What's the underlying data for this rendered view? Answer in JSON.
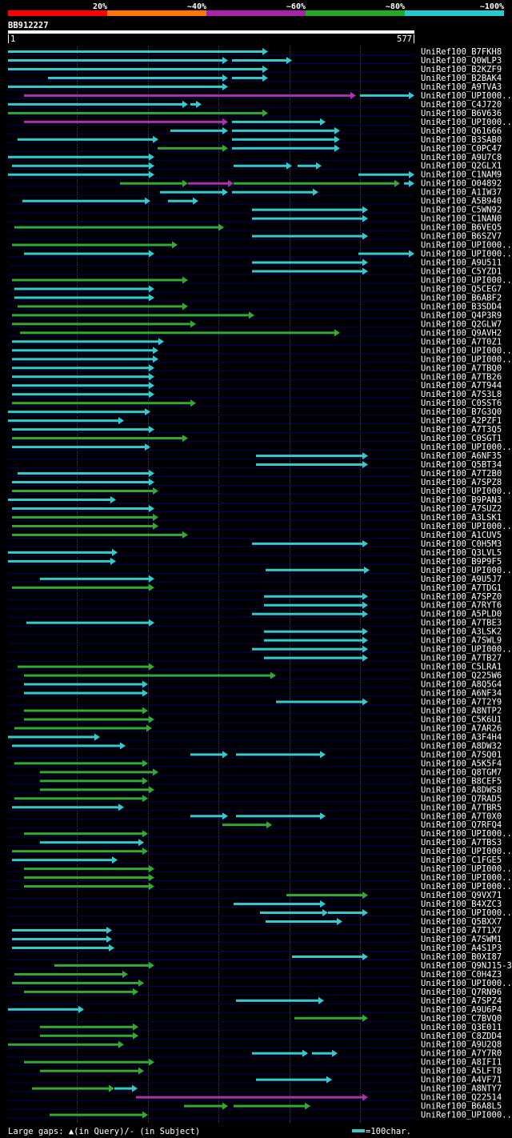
{
  "header": {
    "scale_labels": [
      "20%",
      "~40%",
      "~60%",
      "~80%",
      "~100%"
    ],
    "scale_colors": [
      "#ff0000",
      "#ff7700",
      "#aa22aa",
      "#22aa22",
      "#22cccc"
    ],
    "query_id": "BB912227",
    "ruler_start": "1",
    "ruler_end": "577"
  },
  "colors": {
    "cyan": "#33cccc",
    "green": "#33aa33",
    "magenta": "#aa33aa",
    "grid": "#444444",
    "rowline": "#000066"
  },
  "hits": [
    {
      "id": "UniRef100_B7FKH8",
      "segs": [
        [
          10,
          335,
          "c"
        ]
      ]
    },
    {
      "id": "UniRef100_Q0WLP3",
      "segs": [
        [
          10,
          285,
          "c"
        ],
        [
          290,
          365,
          "c"
        ]
      ]
    },
    {
      "id": "UniRef100_B2KZF9",
      "segs": [
        [
          10,
          335,
          "c"
        ]
      ]
    },
    {
      "id": "UniRef100_B2BAK4",
      "segs": [
        [
          60,
          285,
          "c"
        ],
        [
          290,
          335,
          "c"
        ]
      ]
    },
    {
      "id": "UniRef100_A9TVA3",
      "segs": [
        [
          10,
          285,
          "c"
        ]
      ]
    },
    {
      "id": "UniRef100_UPI000..",
      "segs": [
        [
          30,
          445,
          "m"
        ],
        [
          450,
          518,
          "c"
        ]
      ]
    },
    {
      "id": "UniRef100_C4J720",
      "segs": [
        [
          10,
          235,
          "c"
        ],
        [
          238,
          252,
          "c"
        ]
      ]
    },
    {
      "id": "UniRef100_B6V636",
      "segs": [
        [
          10,
          335,
          "g"
        ]
      ]
    },
    {
      "id": "UniRef100_UPI000..",
      "segs": [
        [
          30,
          285,
          "m"
        ],
        [
          290,
          407,
          "c"
        ]
      ]
    },
    {
      "id": "UniRef100_Q61666",
      "segs": [
        [
          213,
          285,
          "c"
        ],
        [
          290,
          425,
          "c"
        ]
      ]
    },
    {
      "id": "UniRef100_B3SAB0",
      "segs": [
        [
          22,
          198,
          "c"
        ],
        [
          290,
          425,
          "c"
        ]
      ]
    },
    {
      "id": "UniRef100_C0PC47",
      "segs": [
        [
          197,
          285,
          "g"
        ],
        [
          290,
          425,
          "c"
        ]
      ]
    },
    {
      "id": "UniRef100_A9U7C8",
      "segs": [
        [
          10,
          193,
          "c"
        ]
      ]
    },
    {
      "id": "UniRef100_Q2GLX1",
      "segs": [
        [
          15,
          193,
          "c"
        ],
        [
          292,
          365,
          "c"
        ],
        [
          372,
          402,
          "c"
        ]
      ]
    },
    {
      "id": "UniRef100_C1NAM9",
      "segs": [
        [
          10,
          193,
          "c"
        ],
        [
          448,
          518,
          "c"
        ]
      ]
    },
    {
      "id": "UniRef100_O04892",
      "segs": [
        [
          150,
          235,
          "g"
        ],
        [
          235,
          292,
          "m"
        ],
        [
          292,
          500,
          "g"
        ],
        [
          505,
          518,
          "c"
        ]
      ]
    },
    {
      "id": "UniRef100_A1IW37",
      "segs": [
        [
          200,
          285,
          "c"
        ],
        [
          290,
          398,
          "c"
        ]
      ]
    },
    {
      "id": "UniRef100_A5B940",
      "segs": [
        [
          28,
          188,
          "c"
        ],
        [
          210,
          248,
          "c"
        ]
      ]
    },
    {
      "id": "UniRef100_C5WN92",
      "segs": [
        [
          315,
          460,
          "c"
        ]
      ]
    },
    {
      "id": "UniRef100_C1NAN0",
      "segs": [
        [
          315,
          460,
          "c"
        ]
      ]
    },
    {
      "id": "UniRef100_B6VEQ5",
      "segs": [
        [
          18,
          280,
          "g"
        ]
      ]
    },
    {
      "id": "UniRef100_B6SZV7",
      "segs": [
        [
          315,
          460,
          "c"
        ]
      ]
    },
    {
      "id": "UniRef100_UPI000..",
      "segs": [
        [
          15,
          222,
          "g"
        ]
      ]
    },
    {
      "id": "UniRef100_UPI000..",
      "segs": [
        [
          30,
          193,
          "c"
        ],
        [
          448,
          518,
          "c"
        ]
      ]
    },
    {
      "id": "UniRef100_A9U511",
      "segs": [
        [
          315,
          460,
          "c"
        ]
      ]
    },
    {
      "id": "UniRef100_C5YZD1",
      "segs": [
        [
          315,
          460,
          "c"
        ]
      ]
    },
    {
      "id": "UniRef100_UPI000..",
      "segs": [
        [
          15,
          235,
          "g"
        ]
      ]
    },
    {
      "id": "UniRef100_Q5CEG7",
      "segs": [
        [
          18,
          193,
          "c"
        ]
      ]
    },
    {
      "id": "UniRef100_B6ABF2",
      "segs": [
        [
          18,
          193,
          "c"
        ]
      ]
    },
    {
      "id": "UniRef100_B3SDD4",
      "segs": [
        [
          22,
          235,
          "g"
        ]
      ]
    },
    {
      "id": "UniRef100_Q4P3R9",
      "segs": [
        [
          15,
          318,
          "g"
        ]
      ]
    },
    {
      "id": "UniRef100_Q2GLW7",
      "segs": [
        [
          15,
          245,
          "g"
        ]
      ]
    },
    {
      "id": "UniRef100_Q9AVH2",
      "segs": [
        [
          25,
          425,
          "g"
        ]
      ]
    },
    {
      "id": "UniRef100_A7T0Z1",
      "segs": [
        [
          15,
          205,
          "c"
        ]
      ]
    },
    {
      "id": "UniRef100_UPI000..",
      "segs": [
        [
          15,
          198,
          "c"
        ]
      ]
    },
    {
      "id": "UniRef100_UPI000..",
      "segs": [
        [
          15,
          198,
          "c"
        ]
      ]
    },
    {
      "id": "UniRef100_A7TBQ0",
      "segs": [
        [
          15,
          193,
          "c"
        ]
      ]
    },
    {
      "id": "UniRef100_A7TB26",
      "segs": [
        [
          15,
          193,
          "c"
        ]
      ]
    },
    {
      "id": "UniRef100_A7T944",
      "segs": [
        [
          15,
          193,
          "c"
        ]
      ]
    },
    {
      "id": "UniRef100_A7S3L8",
      "segs": [
        [
          15,
          193,
          "c"
        ]
      ]
    },
    {
      "id": "UniRef100_C0SST6",
      "segs": [
        [
          15,
          245,
          "g"
        ]
      ]
    },
    {
      "id": "UniRef100_B7G3Q0",
      "segs": [
        [
          10,
          188,
          "c"
        ]
      ]
    },
    {
      "id": "UniRef100_A2PZF1",
      "segs": [
        [
          10,
          155,
          "c"
        ]
      ]
    },
    {
      "id": "UniRef100_A7T3Q5",
      "segs": [
        [
          15,
          193,
          "c"
        ]
      ]
    },
    {
      "id": "UniRef100_C0SGT1",
      "segs": [
        [
          15,
          235,
          "g"
        ]
      ]
    },
    {
      "id": "UniRef100_UPI000..",
      "segs": [
        [
          15,
          188,
          "c"
        ]
      ]
    },
    {
      "id": "UniRef100_A6NF35",
      "segs": [
        [
          320,
          460,
          "c"
        ]
      ]
    },
    {
      "id": "UniRef100_Q5BT34",
      "segs": [
        [
          320,
          460,
          "c"
        ]
      ]
    },
    {
      "id": "UniRef100_A7T2B0",
      "segs": [
        [
          22,
          193,
          "c"
        ]
      ]
    },
    {
      "id": "UniRef100_A7SPZ8",
      "segs": [
        [
          15,
          193,
          "c"
        ]
      ]
    },
    {
      "id": "UniRef100_UPI000..",
      "segs": [
        [
          15,
          198,
          "g"
        ]
      ]
    },
    {
      "id": "UniRef100_B9PAN3",
      "segs": [
        [
          10,
          145,
          "c"
        ]
      ]
    },
    {
      "id": "UniRef100_A7SUZ2",
      "segs": [
        [
          15,
          193,
          "c"
        ]
      ]
    },
    {
      "id": "UniRef100_A3LSK1",
      "segs": [
        [
          15,
          198,
          "g"
        ]
      ]
    },
    {
      "id": "UniRef100_UPI000..",
      "segs": [
        [
          15,
          198,
          "g"
        ]
      ]
    },
    {
      "id": "UniRef100_A1CUV5",
      "segs": [
        [
          15,
          235,
          "g"
        ]
      ]
    },
    {
      "id": "UniRef100_C0H5M3",
      "segs": [
        [
          315,
          460,
          "c"
        ]
      ]
    },
    {
      "id": "UniRef100_Q3LVL5",
      "segs": [
        [
          10,
          147,
          "c"
        ]
      ]
    },
    {
      "id": "UniRef100_B9P9F5",
      "segs": [
        [
          10,
          145,
          "c"
        ]
      ]
    },
    {
      "id": "UniRef100_UPI000..",
      "segs": [
        [
          332,
          462,
          "c"
        ]
      ]
    },
    {
      "id": "UniRef100_A9U5J7",
      "segs": [
        [
          50,
          193,
          "c"
        ]
      ]
    },
    {
      "id": "UniRef100_A7TDG1",
      "segs": [
        [
          15,
          193,
          "g"
        ]
      ]
    },
    {
      "id": "UniRef100_A7SPZ0",
      "segs": [
        [
          330,
          460,
          "c"
        ]
      ]
    },
    {
      "id": "UniRef100_A7RYT6",
      "segs": [
        [
          330,
          460,
          "c"
        ]
      ]
    },
    {
      "id": "UniRef100_A5PLD0",
      "segs": [
        [
          315,
          460,
          "c"
        ]
      ]
    },
    {
      "id": "UniRef100_A7TBE3",
      "segs": [
        [
          33,
          193,
          "c"
        ]
      ]
    },
    {
      "id": "UniRef100_A3LSK2",
      "segs": [
        [
          330,
          460,
          "c"
        ]
      ]
    },
    {
      "id": "UniRef100_A7SWL9",
      "segs": [
        [
          330,
          460,
          "c"
        ]
      ]
    },
    {
      "id": "UniRef100_UPI000..",
      "segs": [
        [
          315,
          460,
          "c"
        ]
      ]
    },
    {
      "id": "UniRef100_A7TB27",
      "segs": [
        [
          330,
          460,
          "c"
        ]
      ]
    },
    {
      "id": "UniRef100_C5LRA1",
      "segs": [
        [
          22,
          193,
          "g"
        ]
      ]
    },
    {
      "id": "UniRef100_Q225W6",
      "segs": [
        [
          30,
          345,
          "g"
        ]
      ]
    },
    {
      "id": "UniRef100_A8Q5G4",
      "segs": [
        [
          30,
          185,
          "c"
        ]
      ]
    },
    {
      "id": "UniRef100_A6NF34",
      "segs": [
        [
          30,
          185,
          "c"
        ]
      ]
    },
    {
      "id": "UniRef100_A7T2Y9",
      "segs": [
        [
          345,
          460,
          "c"
        ]
      ]
    },
    {
      "id": "UniRef100_A8NTP2",
      "segs": [
        [
          30,
          185,
          "g"
        ]
      ]
    },
    {
      "id": "UniRef100_C5K6U1",
      "segs": [
        [
          30,
          193,
          "g"
        ]
      ]
    },
    {
      "id": "UniRef100_A7AR26",
      "segs": [
        [
          18,
          190,
          "g"
        ]
      ]
    },
    {
      "id": "UniRef100_A3F4H4",
      "segs": [
        [
          10,
          125,
          "c"
        ]
      ]
    },
    {
      "id": "UniRef100_A8DW32",
      "segs": [
        [
          15,
          157,
          "c"
        ]
      ]
    },
    {
      "id": "UniRef100_A7SQ01",
      "segs": [
        [
          238,
          285,
          "c"
        ],
        [
          295,
          407,
          "c"
        ]
      ]
    },
    {
      "id": "UniRef100_A5K5F4",
      "segs": [
        [
          18,
          185,
          "g"
        ]
      ]
    },
    {
      "id": "UniRef100_Q8TGM7",
      "segs": [
        [
          50,
          198,
          "g"
        ]
      ]
    },
    {
      "id": "UniRef100_B8CEF5",
      "segs": [
        [
          50,
          185,
          "g"
        ]
      ]
    },
    {
      "id": "UniRef100_A8DWS8",
      "segs": [
        [
          50,
          193,
          "g"
        ]
      ]
    },
    {
      "id": "UniRef100_Q7RAD5",
      "segs": [
        [
          18,
          185,
          "g"
        ]
      ]
    },
    {
      "id": "UniRef100_A7TBR5",
      "segs": [
        [
          15,
          155,
          "c"
        ]
      ]
    },
    {
      "id": "UniRef100_A7T0X0",
      "segs": [
        [
          238,
          285,
          "c"
        ],
        [
          295,
          407,
          "c"
        ]
      ]
    },
    {
      "id": "UniRef100_Q7RFQ4",
      "segs": [
        [
          278,
          340,
          "g"
        ]
      ]
    },
    {
      "id": "UniRef100_UPI000..",
      "segs": [
        [
          30,
          185,
          "g"
        ]
      ]
    },
    {
      "id": "UniRef100_A7TBS3",
      "segs": [
        [
          50,
          180,
          "c"
        ]
      ]
    },
    {
      "id": "UniRef100_UPI000..",
      "segs": [
        [
          15,
          185,
          "g"
        ]
      ]
    },
    {
      "id": "UniRef100_C1FGE5",
      "segs": [
        [
          15,
          147,
          "c"
        ]
      ]
    },
    {
      "id": "UniRef100_UPI000..",
      "segs": [
        [
          30,
          193,
          "g"
        ]
      ]
    },
    {
      "id": "UniRef100_UPI000..",
      "segs": [
        [
          30,
          193,
          "g"
        ]
      ]
    },
    {
      "id": "UniRef100_UPI000..",
      "segs": [
        [
          30,
          193,
          "g"
        ]
      ]
    },
    {
      "id": "UniRef100_Q9VX71",
      "segs": [
        [
          358,
          460,
          "g"
        ]
      ]
    },
    {
      "id": "UniRef100_B4XZC3",
      "segs": [
        [
          292,
          407,
          "c"
        ]
      ]
    },
    {
      "id": "UniRef100_UPI000..",
      "segs": [
        [
          325,
          410,
          "c"
        ],
        [
          410,
          460,
          "c"
        ]
      ]
    },
    {
      "id": "UniRef100_Q5BXX7",
      "segs": [
        [
          332,
          428,
          "c"
        ]
      ]
    },
    {
      "id": "UniRef100_A7T1X7",
      "segs": [
        [
          15,
          140,
          "c"
        ]
      ]
    },
    {
      "id": "UniRef100_A7SWM1",
      "segs": [
        [
          15,
          140,
          "c"
        ]
      ]
    },
    {
      "id": "UniRef100_A4S1P3",
      "segs": [
        [
          15,
          143,
          "c"
        ]
      ]
    },
    {
      "id": "UniRef100_B0XI87",
      "segs": [
        [
          365,
          460,
          "c"
        ]
      ]
    },
    {
      "id": "UniRef100_Q9NJ15-3",
      "segs": [
        [
          68,
          193,
          "g"
        ]
      ]
    },
    {
      "id": "UniRef100_C0H4Z3",
      "segs": [
        [
          18,
          160,
          "g"
        ]
      ]
    },
    {
      "id": "UniRef100_UPI000..",
      "segs": [
        [
          15,
          180,
          "g"
        ]
      ]
    },
    {
      "id": "UniRef100_Q7RN96",
      "segs": [
        [
          30,
          173,
          "g"
        ]
      ]
    },
    {
      "id": "UniRef100_A7SPZ4",
      "segs": [
        [
          295,
          405,
          "c"
        ]
      ]
    },
    {
      "id": "UniRef100_A9U6P4",
      "segs": [
        [
          10,
          105,
          "c"
        ]
      ]
    },
    {
      "id": "UniRef100_C7BVQ0",
      "segs": [
        [
          368,
          460,
          "g"
        ]
      ]
    },
    {
      "id": "UniRef100_Q3E011",
      "segs": [
        [
          50,
          173,
          "g"
        ]
      ]
    },
    {
      "id": "UniRef100_C8ZDD4",
      "segs": [
        [
          50,
          173,
          "g"
        ]
      ]
    },
    {
      "id": "UniRef100_A9U2Q8",
      "segs": [
        [
          10,
          155,
          "g"
        ]
      ]
    },
    {
      "id": "UniRef100_A7Y7R0",
      "segs": [
        [
          315,
          385,
          "c"
        ],
        [
          390,
          422,
          "c"
        ]
      ]
    },
    {
      "id": "UniRef100_A8IFI1",
      "segs": [
        [
          30,
          193,
          "g"
        ]
      ]
    },
    {
      "id": "UniRef100_A5LFT8",
      "segs": [
        [
          50,
          180,
          "g"
        ]
      ]
    },
    {
      "id": "UniRef100_A4VF71",
      "segs": [
        [
          320,
          415,
          "c"
        ]
      ]
    },
    {
      "id": "UniRef100_A8NTY7",
      "segs": [
        [
          40,
          143,
          "g"
        ],
        [
          143,
          172,
          "c"
        ]
      ]
    },
    {
      "id": "UniRef100_Q22514",
      "segs": [
        [
          170,
          460,
          "m"
        ]
      ]
    },
    {
      "id": "UniRef100_B6A8L5",
      "segs": [
        [
          230,
          285,
          "g"
        ],
        [
          292,
          388,
          "g"
        ]
      ]
    },
    {
      "id": "UniRef100_UPI000..",
      "segs": [
        [
          62,
          185,
          "g"
        ]
      ]
    }
  ],
  "footer": {
    "gaps_text": "Large gaps: ▲(in Query)/- (in Subject)",
    "legend_text": "=100char."
  }
}
